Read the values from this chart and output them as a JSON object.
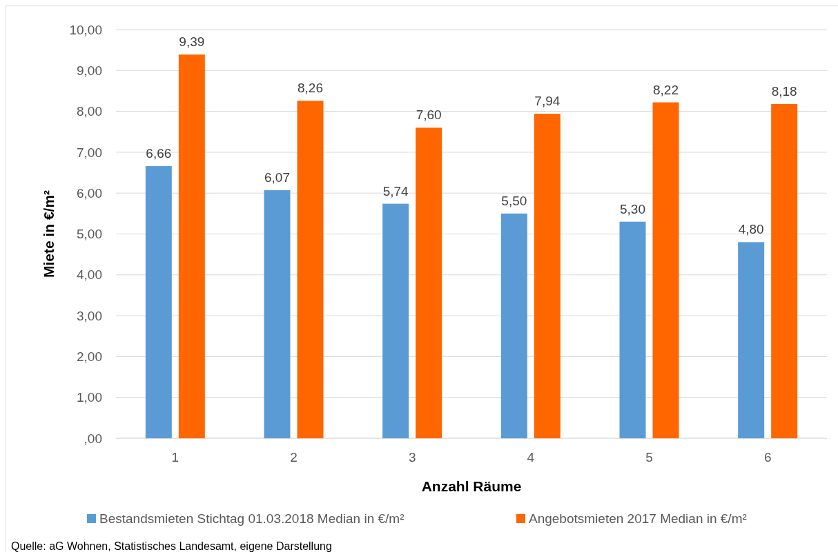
{
  "chart_data": {
    "type": "bar",
    "xlabel": "Anzahl Räume",
    "ylabel": "Miete in €/m²",
    "categories": [
      "1",
      "2",
      "3",
      "4",
      "5",
      "6"
    ],
    "series": [
      {
        "name": "Bestandsmieten Stichtag 01.03.2018 Median in €/m²",
        "color": "#5b9bd5",
        "values": [
          6.66,
          6.07,
          5.74,
          5.5,
          5.3,
          4.8
        ],
        "value_labels": [
          "6,66",
          "6,07",
          "5,74",
          "5,50",
          "5,30",
          "4,80"
        ]
      },
      {
        "name": "Angebotsmieten 2017 Median in €/m²",
        "color": "#ff6600",
        "values": [
          9.39,
          8.26,
          7.6,
          7.94,
          8.22,
          8.18
        ],
        "value_labels": [
          "9,39",
          "8,26",
          "7,60",
          "7,94",
          "8,22",
          "8,18"
        ]
      }
    ],
    "ylim": [
      0,
      10
    ],
    "yticks": [
      {
        "value": 0,
        "label": ",00"
      },
      {
        "value": 1,
        "label": "1,00"
      },
      {
        "value": 2,
        "label": "2,00"
      },
      {
        "value": 3,
        "label": "3,00"
      },
      {
        "value": 4,
        "label": "4,00"
      },
      {
        "value": 5,
        "label": "5,00"
      },
      {
        "value": 6,
        "label": "6,00"
      },
      {
        "value": 7,
        "label": "7,00"
      },
      {
        "value": 8,
        "label": "8,00"
      },
      {
        "value": 9,
        "label": "9,00"
      },
      {
        "value": 10,
        "label": "10,00"
      }
    ],
    "grid": "y",
    "legend": "bottom",
    "annotations": [
      "Quelle: aG Wohnen, Statistisches Landesamt, eigene Darstellung"
    ]
  }
}
